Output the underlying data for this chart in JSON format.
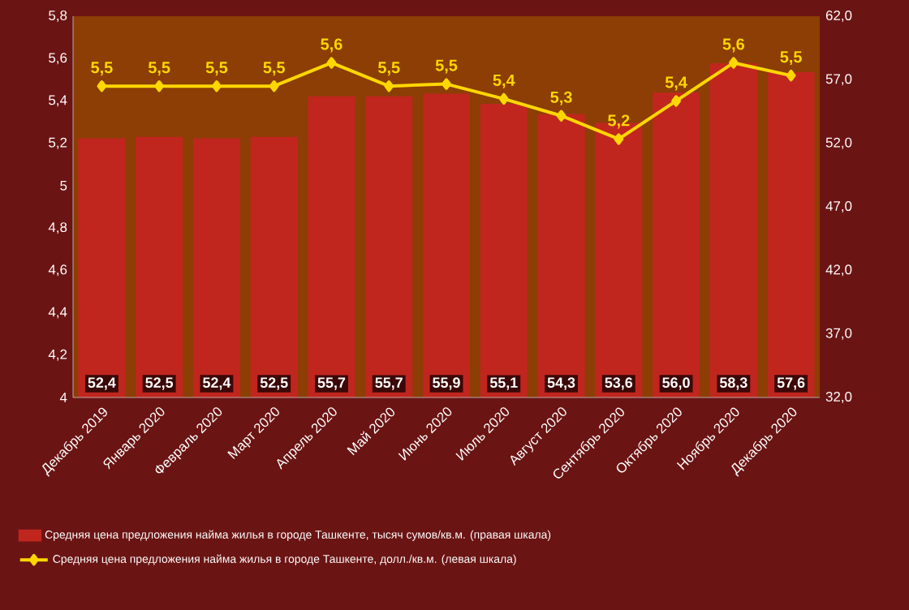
{
  "chart_data": {
    "type": "bar",
    "categories": [
      "Декабрь 2019",
      "Январь 2020",
      "Февраль 2020",
      "Март 2020",
      "Апрель 2020",
      "Май 2020",
      "Июнь 2020",
      "Июль 2020",
      "Август 2020",
      "Сентябрь 2020",
      "Октябрь 2020",
      "Ноябрь 2020",
      "Декабрь 2020"
    ],
    "series": [
      {
        "name": "Средняя цена предложения найма жилья в городе Ташкенте, тысяч сумов/кв.м. (правая шкала)",
        "axis": "y2",
        "color": "#c0261e",
        "values": [
          52.4,
          52.5,
          52.4,
          52.5,
          55.7,
          55.7,
          55.9,
          55.1,
          54.3,
          53.6,
          56.0,
          58.3,
          57.6
        ],
        "value_labels": [
          "52,4",
          "52,5",
          "52,4",
          "52,5",
          "55,7",
          "55,7",
          "55,9",
          "55,1",
          "54,3",
          "53,6",
          "56,0",
          "58,3",
          "57,6"
        ]
      },
      {
        "name": "Средняя цена предложения найма жилья в городе Ташкенте, долл./кв.м. (левая шкала)",
        "type": "line",
        "color": "#ffd700",
        "values": [
          5.47,
          5.47,
          5.47,
          5.47,
          5.58,
          5.47,
          5.48,
          5.41,
          5.33,
          5.22,
          5.4,
          5.58,
          5.52
        ],
        "value_labels": [
          "5,5",
          "5,5",
          "5,5",
          "5,5",
          "5,6",
          "5,5",
          "5,5",
          "5,4",
          "5,3",
          "5,2",
          "5,4",
          "5,6",
          "5,5"
        ]
      }
    ],
    "ylim": [
      4,
      5.8
    ],
    "yticks": [
      {
        "value": 4,
        "label": "4"
      },
      {
        "value": 4.2,
        "label": "4,2"
      },
      {
        "value": 4.4,
        "label": "4,4"
      },
      {
        "value": 4.6,
        "label": "4,6"
      },
      {
        "value": 4.8,
        "label": "4,8"
      },
      {
        "value": 5,
        "label": "5"
      },
      {
        "value": 5.2,
        "label": "5,2"
      },
      {
        "value": 5.4,
        "label": "5,4"
      },
      {
        "value": 5.6,
        "label": "5,6"
      },
      {
        "value": 5.8,
        "label": "5,8"
      }
    ],
    "y2lim": [
      32,
      62
    ],
    "y2ticks": [
      {
        "value": 32,
        "label": "32,0"
      },
      {
        "value": 37,
        "label": "37,0"
      },
      {
        "value": 42,
        "label": "42,0"
      },
      {
        "value": 47,
        "label": "47,0"
      },
      {
        "value": 52,
        "label": "52,0"
      },
      {
        "value": 57,
        "label": "57,0"
      },
      {
        "value": 62,
        "label": "62,0"
      }
    ],
    "marker": "diamond",
    "legend": "bottom"
  }
}
